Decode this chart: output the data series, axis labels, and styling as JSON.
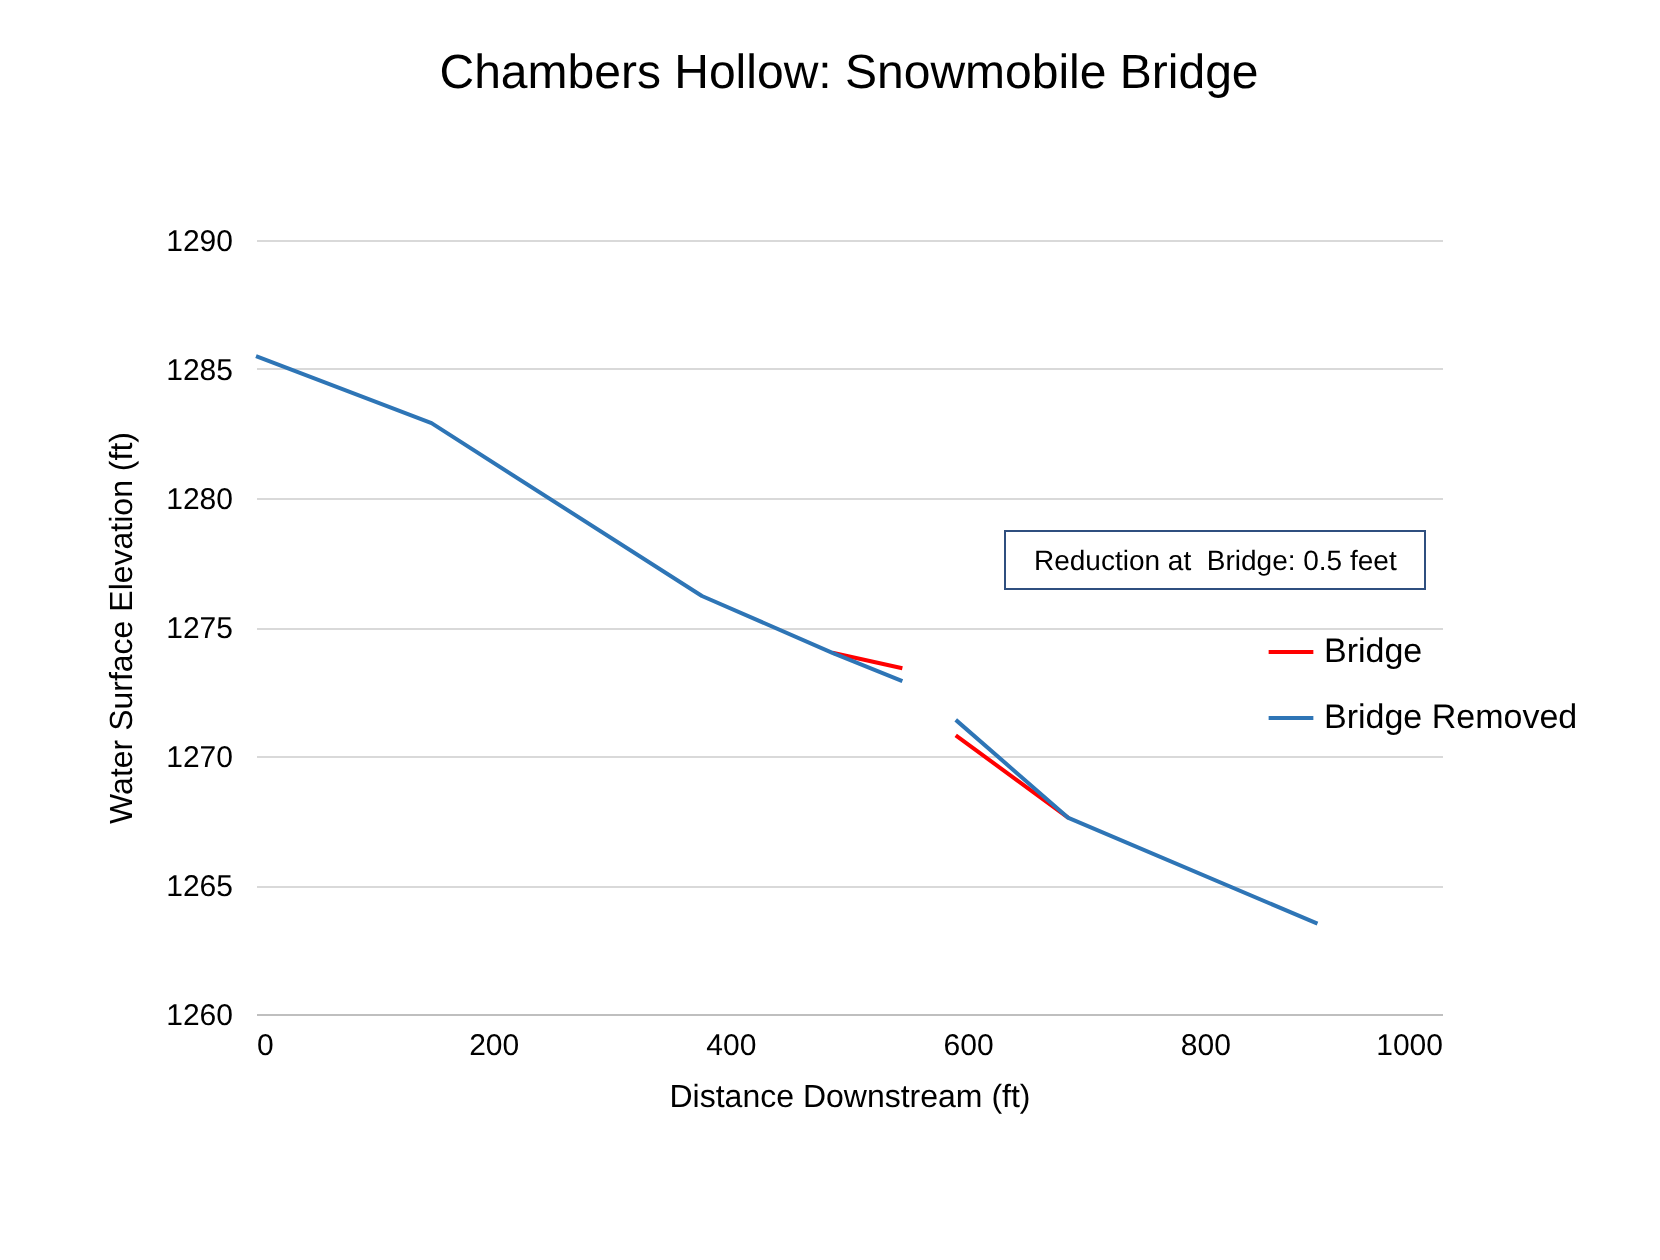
{
  "chart_data": {
    "type": "line",
    "title": "Chambers Hollow: Snowmobile Bridge",
    "xlabel": "Distance Downstream (ft)",
    "ylabel": "Water Surface Elevation (ft)",
    "annotations": [
      "Reduction at  Bridge: 0.5 feet"
    ],
    "x": [
      0,
      148,
      376,
      486,
      545,
      567,
      590,
      685,
      895
    ],
    "series": [
      {
        "name": "Bridge",
        "color": "#ff0000",
        "values": [
          null,
          null,
          null,
          1274.0,
          1273.4,
          null,
          1270.8,
          1267.6,
          null
        ]
      },
      {
        "name": "Bridge Removed",
        "color": "#2e75b6",
        "values": [
          1285.5,
          1282.9,
          1276.2,
          1274.0,
          1272.9,
          null,
          1271.4,
          1267.6,
          1263.5
        ]
      }
    ],
    "xlim": [
      0,
      1000
    ],
    "xticks": [
      0,
      200,
      400,
      600,
      800,
      1000
    ],
    "ylim": [
      1260,
      1290
    ],
    "yticks": [
      1260,
      1265,
      1270,
      1275,
      1280,
      1285,
      1290
    ],
    "grid": "y",
    "legend": "right",
    "line_style": "solid",
    "marker": "none"
  }
}
